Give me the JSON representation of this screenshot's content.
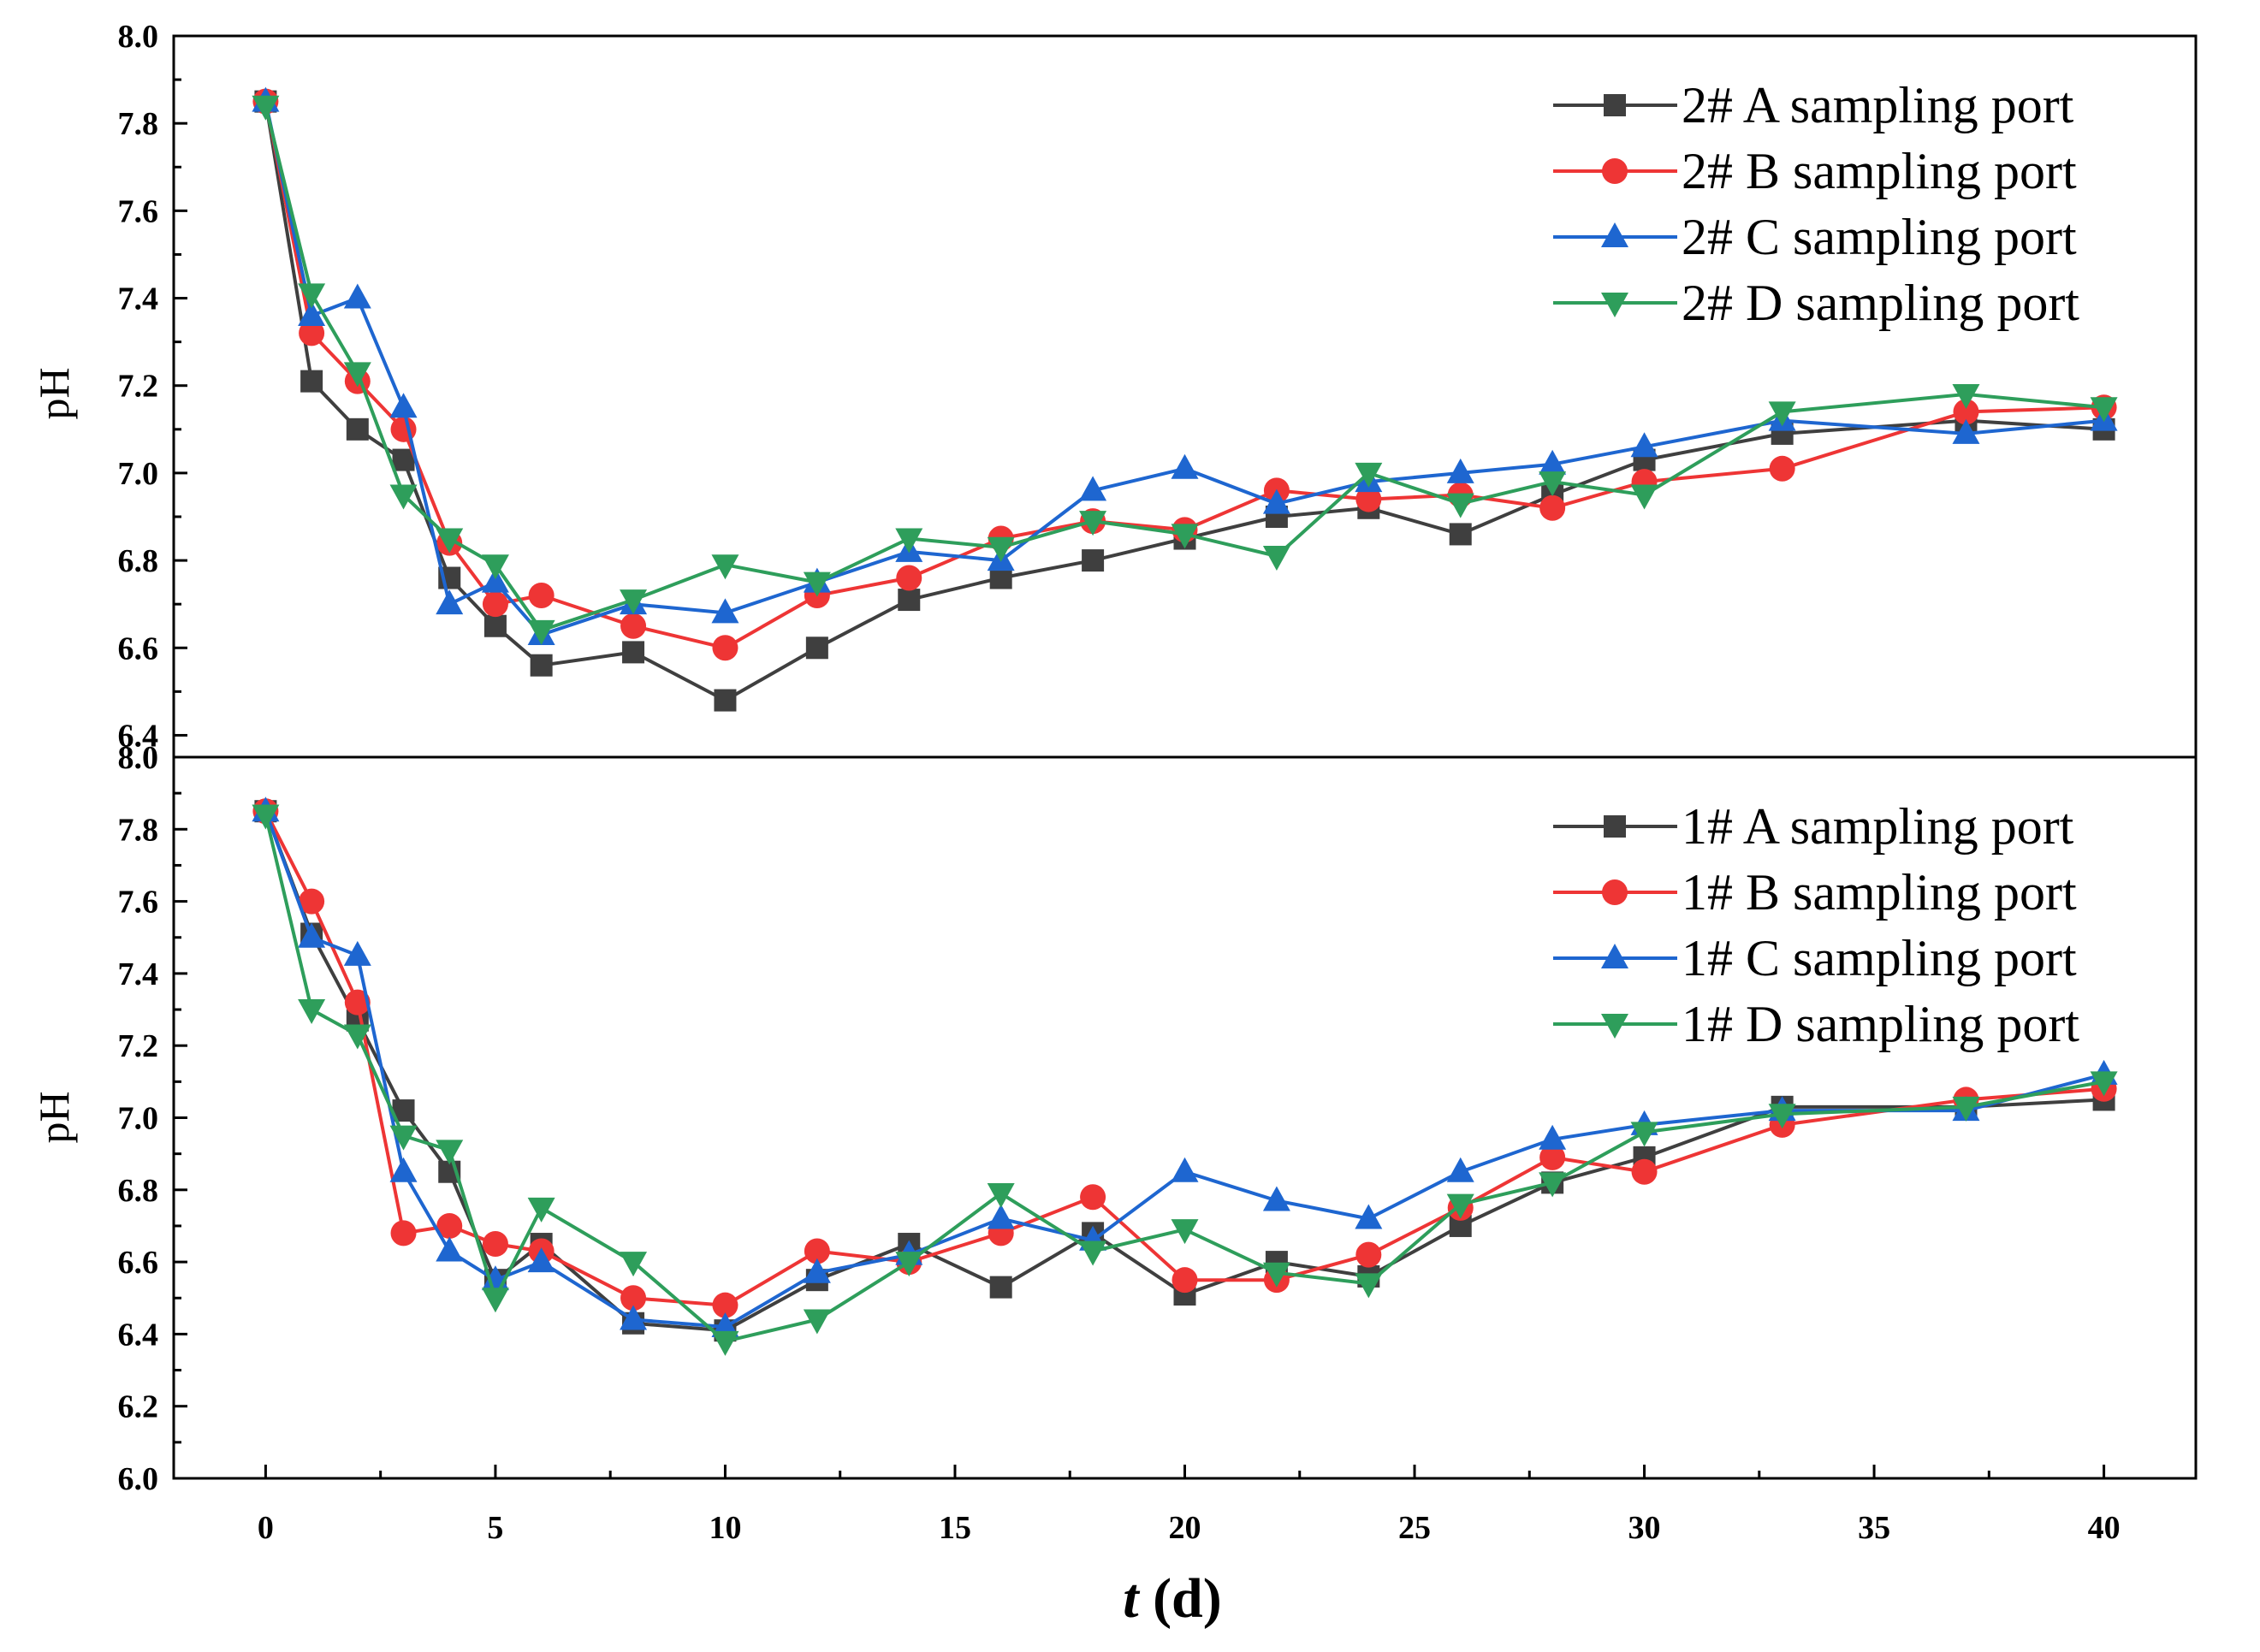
{
  "chart_data": [
    {
      "type": "line",
      "panel": "top",
      "ylabel": "pH",
      "ylim": [
        6.35,
        8.0
      ],
      "yticks": [
        "6.4",
        "6.6",
        "6.8",
        "7.0",
        "7.2",
        "7.4",
        "7.6",
        "7.8",
        "8.0"
      ],
      "x": [
        0,
        1,
        2,
        3,
        4,
        5,
        6,
        8,
        10,
        12,
        14,
        16,
        18,
        20,
        22,
        24,
        26,
        28,
        30,
        33,
        37,
        40
      ],
      "legend_position": "top-right",
      "series": [
        {
          "name": "2# A sampling port",
          "color": "#3f3f3f",
          "marker": "square",
          "values": [
            7.85,
            7.21,
            7.1,
            7.03,
            6.76,
            6.65,
            6.56,
            6.59,
            6.48,
            6.6,
            6.71,
            6.76,
            6.8,
            6.85,
            6.9,
            6.92,
            6.86,
            6.95,
            7.03,
            7.09,
            7.12,
            7.1
          ]
        },
        {
          "name": "2# B sampling port",
          "color": "#ee3535",
          "marker": "circle",
          "values": [
            7.85,
            7.32,
            7.21,
            7.1,
            6.84,
            6.7,
            6.72,
            6.65,
            6.6,
            6.72,
            6.76,
            6.85,
            6.89,
            6.87,
            6.96,
            6.94,
            6.95,
            6.92,
            6.98,
            7.01,
            7.14,
            7.15
          ]
        },
        {
          "name": "2# C sampling port",
          "color": "#1e66d0",
          "marker": "triangle-up",
          "values": [
            7.85,
            7.36,
            7.4,
            7.15,
            6.7,
            6.75,
            6.63,
            6.7,
            6.68,
            6.75,
            6.82,
            6.8,
            6.96,
            7.01,
            6.93,
            6.98,
            7.0,
            7.02,
            7.06,
            7.12,
            7.09,
            7.12
          ]
        },
        {
          "name": "2# D sampling port",
          "color": "#2e9e5b",
          "marker": "triangle-down",
          "values": [
            7.84,
            7.41,
            7.23,
            6.95,
            6.85,
            6.79,
            6.64,
            6.71,
            6.79,
            6.75,
            6.85,
            6.83,
            6.89,
            6.86,
            6.81,
            7.0,
            6.93,
            6.98,
            6.95,
            7.14,
            7.18,
            7.15
          ]
        }
      ]
    },
    {
      "type": "line",
      "panel": "bottom",
      "ylabel": "pH",
      "xlabel_italic": "t",
      "xlabel_unit": " (d)",
      "ylim": [
        6.0,
        8.0
      ],
      "yticks": [
        "6.0",
        "6.2",
        "6.4",
        "6.6",
        "6.8",
        "7.0",
        "7.2",
        "7.4",
        "7.6",
        "7.8",
        "8.0"
      ],
      "xlim": [
        -2,
        42
      ],
      "xticks": [
        "0",
        "5",
        "10",
        "15",
        "20",
        "25",
        "30",
        "35",
        "40"
      ],
      "x": [
        0,
        1,
        2,
        3,
        4,
        5,
        6,
        8,
        10,
        12,
        14,
        16,
        18,
        20,
        22,
        24,
        26,
        28,
        30,
        33,
        37,
        40
      ],
      "legend_position": "top-right",
      "series": [
        {
          "name": "1# A sampling port",
          "color": "#3f3f3f",
          "marker": "square",
          "values": [
            7.85,
            7.51,
            7.27,
            7.02,
            6.85,
            6.55,
            6.65,
            6.43,
            6.41,
            6.55,
            6.65,
            6.53,
            6.68,
            6.51,
            6.6,
            6.56,
            6.7,
            6.82,
            6.89,
            7.03,
            7.03,
            7.05
          ]
        },
        {
          "name": "1# B sampling port",
          "color": "#ee3535",
          "marker": "circle",
          "values": [
            7.85,
            7.6,
            7.32,
            6.68,
            6.7,
            6.65,
            6.63,
            6.5,
            6.48,
            6.63,
            6.6,
            6.68,
            6.78,
            6.55,
            6.55,
            6.62,
            6.75,
            6.89,
            6.85,
            6.98,
            7.05,
            7.08
          ]
        },
        {
          "name": "1# C sampling port",
          "color": "#1e66d0",
          "marker": "triangle-up",
          "values": [
            7.85,
            7.5,
            7.45,
            6.85,
            6.63,
            6.55,
            6.6,
            6.44,
            6.42,
            6.57,
            6.62,
            6.72,
            6.66,
            6.85,
            6.77,
            6.72,
            6.85,
            6.94,
            6.98,
            7.02,
            7.02,
            7.12
          ]
        },
        {
          "name": "1# D sampling port",
          "color": "#2e9e5b",
          "marker": "triangle-down",
          "values": [
            7.84,
            7.3,
            7.23,
            6.95,
            6.91,
            6.5,
            6.75,
            6.6,
            6.38,
            6.44,
            6.6,
            6.79,
            6.63,
            6.69,
            6.57,
            6.54,
            6.76,
            6.82,
            6.96,
            7.01,
            7.03,
            7.1
          ]
        }
      ]
    }
  ]
}
